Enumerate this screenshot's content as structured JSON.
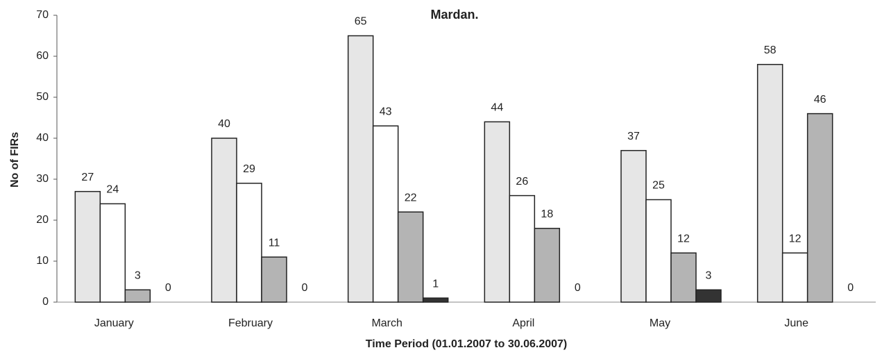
{
  "chart_data": {
    "type": "bar",
    "title": "Mardan.",
    "y_label": "No of FIRs",
    "x_label": "Time Period (01.01.2007 to 30.06.2007)",
    "categories": [
      "January",
      "February",
      "March",
      "April",
      "May",
      "June"
    ],
    "series": [
      {
        "color": "#e6e6e6",
        "values": [
          27,
          40,
          65,
          44,
          37,
          58
        ]
      },
      {
        "color": "#ffffff",
        "values": [
          24,
          29,
          43,
          26,
          25,
          12
        ]
      },
      {
        "color": "#b4b4b4",
        "values": [
          3,
          11,
          22,
          18,
          12,
          46
        ]
      },
      {
        "color": "#333333",
        "values": [
          0,
          0,
          1,
          0,
          3,
          0
        ]
      }
    ],
    "ylim": [
      0,
      70
    ],
    "yticks": [
      0,
      10,
      20,
      30,
      40,
      50,
      60,
      70
    ],
    "grid": false
  }
}
